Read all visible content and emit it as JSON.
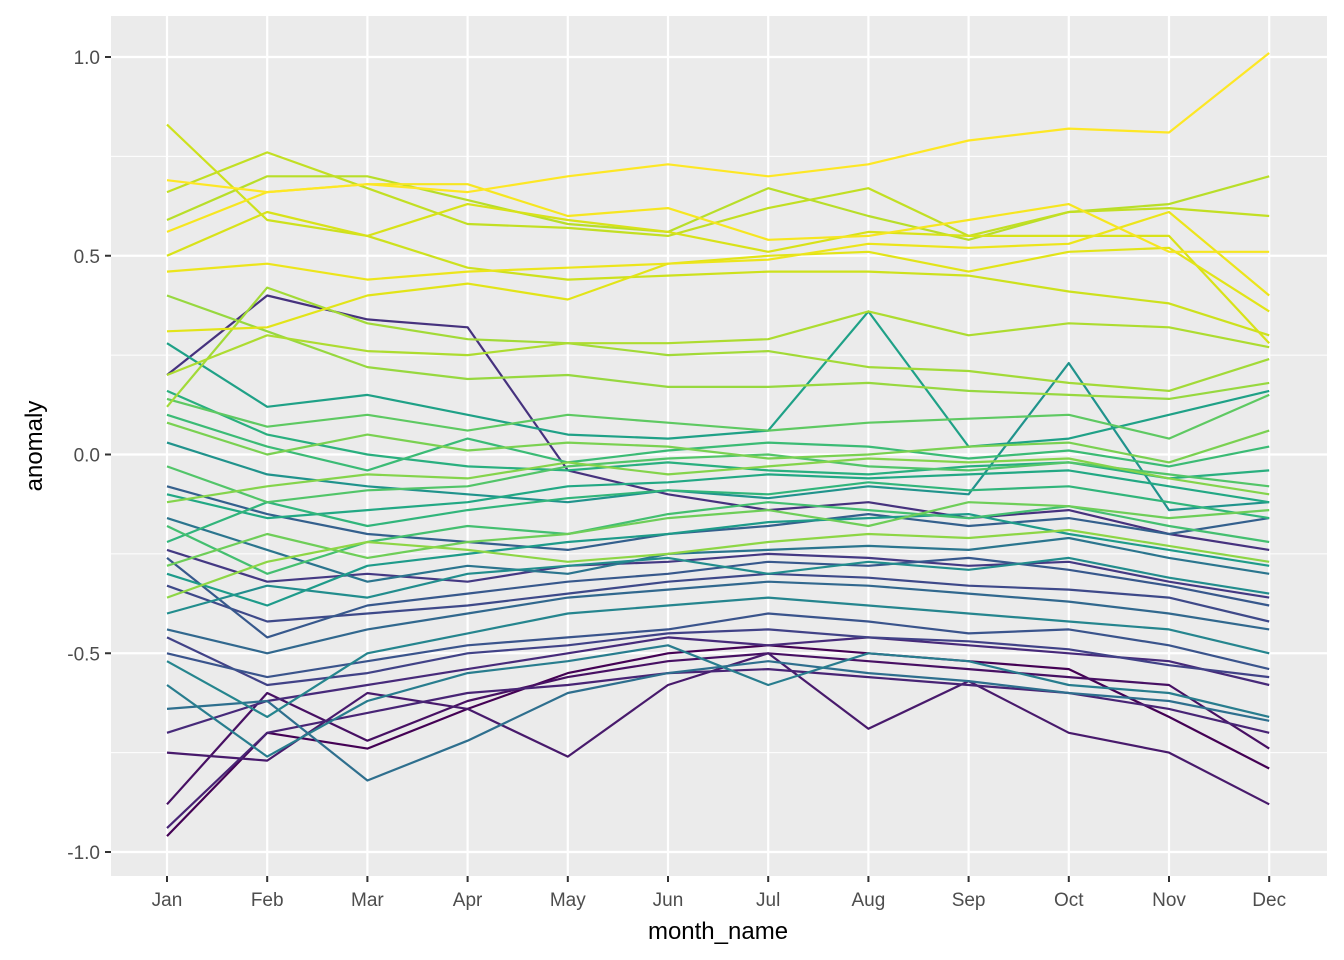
{
  "chart_data": {
    "type": "line",
    "title": "",
    "xlabel": "month_name",
    "ylabel": "anomaly",
    "categories": [
      "Jan",
      "Feb",
      "Mar",
      "Apr",
      "May",
      "Jun",
      "Jul",
      "Aug",
      "Sep",
      "Oct",
      "Nov",
      "Dec"
    ],
    "ylim": [
      -1.05,
      1.1
    ],
    "yticks": [
      -1.0,
      -0.5,
      0.0,
      0.5,
      1.0
    ],
    "ytick_labels": [
      "-1.0",
      "-0.5",
      "0.0",
      "0.5",
      "1.0"
    ],
    "grid": true,
    "legend": "none",
    "color_scale": "viridis",
    "panel_color": "#ebebeb",
    "grid_color": "#ffffff",
    "series": [
      {
        "color": "#fde725",
        "values": [
          0.69,
          0.66,
          0.68,
          0.66,
          0.7,
          0.73,
          0.7,
          0.73,
          0.79,
          0.82,
          0.81,
          1.01
        ]
      },
      {
        "color": "#f6e620",
        "values": [
          0.56,
          0.66,
          0.68,
          0.68,
          0.6,
          0.62,
          0.54,
          0.55,
          0.59,
          0.63,
          0.51,
          0.51
        ]
      },
      {
        "color": "#ece51b",
        "values": [
          0.46,
          0.48,
          0.44,
          0.46,
          0.47,
          0.48,
          0.49,
          0.53,
          0.52,
          0.53,
          0.61,
          0.4
        ]
      },
      {
        "color": "#e2e418",
        "values": [
          0.31,
          0.32,
          0.4,
          0.43,
          0.39,
          0.48,
          0.5,
          0.51,
          0.46,
          0.51,
          0.52,
          0.36
        ]
      },
      {
        "color": "#d8e219",
        "values": [
          0.5,
          0.61,
          0.55,
          0.63,
          0.59,
          0.56,
          0.51,
          0.56,
          0.55,
          0.55,
          0.55,
          0.28
        ]
      },
      {
        "color": "#cde11d",
        "values": [
          0.83,
          0.59,
          0.55,
          0.47,
          0.44,
          0.45,
          0.46,
          0.46,
          0.45,
          0.41,
          0.38,
          0.3
        ]
      },
      {
        "color": "#c2df23",
        "values": [
          0.66,
          0.76,
          0.67,
          0.58,
          0.57,
          0.55,
          0.62,
          0.67,
          0.55,
          0.61,
          0.62,
          0.6
        ]
      },
      {
        "color": "#b8de29",
        "values": [
          0.59,
          0.7,
          0.7,
          0.64,
          0.58,
          0.56,
          0.67,
          0.6,
          0.54,
          0.61,
          0.63,
          0.7
        ]
      },
      {
        "color": "#addc30",
        "values": [
          0.2,
          0.3,
          0.26,
          0.25,
          0.28,
          0.28,
          0.29,
          0.36,
          0.3,
          0.33,
          0.32,
          0.27
        ]
      },
      {
        "color": "#a2da37",
        "values": [
          0.12,
          0.42,
          0.33,
          0.29,
          0.28,
          0.25,
          0.26,
          0.22,
          0.21,
          0.18,
          0.16,
          0.24
        ]
      },
      {
        "color": "#97d83f",
        "values": [
          0.4,
          0.31,
          0.22,
          0.19,
          0.2,
          0.17,
          0.17,
          0.18,
          0.16,
          0.15,
          0.14,
          0.18
        ]
      },
      {
        "color": "#8dd645",
        "values": [
          -0.36,
          -0.27,
          -0.22,
          -0.24,
          -0.27,
          -0.25,
          -0.22,
          -0.2,
          -0.21,
          -0.19,
          -0.23,
          -0.27
        ]
      },
      {
        "color": "#84d44b",
        "values": [
          -0.12,
          -0.08,
          -0.05,
          -0.06,
          -0.02,
          -0.05,
          -0.03,
          -0.01,
          -0.02,
          -0.01,
          -0.06,
          -0.1
        ]
      },
      {
        "color": "#7ad151",
        "values": [
          0.08,
          0.0,
          0.05,
          0.01,
          0.03,
          0.02,
          -0.01,
          0.0,
          0.02,
          0.03,
          -0.02,
          0.06
        ]
      },
      {
        "color": "#6ece58",
        "values": [
          -0.28,
          -0.2,
          -0.26,
          -0.22,
          -0.2,
          -0.16,
          -0.14,
          -0.18,
          -0.12,
          -0.13,
          -0.16,
          -0.14
        ]
      },
      {
        "color": "#5ec962",
        "values": [
          0.14,
          0.07,
          0.1,
          0.06,
          0.1,
          0.08,
          0.06,
          0.08,
          0.09,
          0.1,
          0.04,
          0.15
        ]
      },
      {
        "color": "#52c569",
        "values": [
          -0.03,
          -0.12,
          -0.09,
          -0.08,
          -0.03,
          -0.01,
          0.0,
          -0.03,
          -0.04,
          -0.02,
          -0.05,
          -0.08
        ]
      },
      {
        "color": "#44bf70",
        "values": [
          -0.18,
          -0.3,
          -0.22,
          -0.18,
          -0.2,
          -0.15,
          -0.12,
          -0.14,
          -0.16,
          -0.13,
          -0.18,
          -0.22
        ]
      },
      {
        "color": "#3bbb75",
        "values": [
          0.1,
          0.02,
          -0.04,
          0.04,
          -0.02,
          0.01,
          0.03,
          0.02,
          -0.01,
          0.01,
          -0.03,
          0.02
        ]
      },
      {
        "color": "#31b57b",
        "values": [
          -0.22,
          -0.12,
          -0.18,
          -0.14,
          -0.11,
          -0.09,
          -0.1,
          -0.07,
          -0.09,
          -0.08,
          -0.12,
          -0.16
        ]
      },
      {
        "color": "#29af7f",
        "values": [
          0.16,
          0.05,
          0.0,
          -0.03,
          -0.04,
          -0.02,
          -0.04,
          -0.05,
          -0.03,
          -0.02,
          -0.06,
          -0.04
        ]
      },
      {
        "color": "#22a884",
        "values": [
          -0.1,
          -0.16,
          -0.14,
          -0.12,
          -0.08,
          -0.07,
          -0.05,
          -0.06,
          -0.05,
          -0.04,
          -0.08,
          -0.12
        ]
      },
      {
        "color": "#1fa187",
        "values": [
          0.28,
          0.12,
          0.15,
          0.1,
          0.05,
          0.04,
          0.06,
          0.36,
          0.02,
          0.04,
          0.1,
          0.16
        ]
      },
      {
        "color": "#1e9b8a",
        "values": [
          -0.3,
          -0.38,
          -0.28,
          -0.25,
          -0.22,
          -0.2,
          -0.17,
          -0.16,
          -0.15,
          -0.2,
          -0.24,
          -0.28
        ]
      },
      {
        "color": "#20938c",
        "values": [
          0.03,
          -0.05,
          -0.08,
          -0.1,
          -0.12,
          -0.09,
          -0.11,
          -0.08,
          -0.1,
          0.23,
          -0.14,
          -0.12
        ]
      },
      {
        "color": "#228d8d",
        "values": [
          -0.4,
          -0.33,
          -0.36,
          -0.3,
          -0.28,
          -0.26,
          -0.3,
          -0.27,
          -0.29,
          -0.26,
          -0.31,
          -0.35
        ]
      },
      {
        "color": "#25858e",
        "values": [
          -0.52,
          -0.66,
          -0.5,
          -0.45,
          -0.4,
          -0.38,
          -0.36,
          -0.38,
          -0.4,
          -0.42,
          -0.44,
          -0.5
        ]
      },
      {
        "color": "#287d8e",
        "values": [
          -0.58,
          -0.76,
          -0.62,
          -0.55,
          -0.52,
          -0.48,
          -0.58,
          -0.5,
          -0.52,
          -0.58,
          -0.6,
          -0.66
        ]
      },
      {
        "color": "#2b758e",
        "values": [
          -0.16,
          -0.24,
          -0.32,
          -0.28,
          -0.3,
          -0.25,
          -0.24,
          -0.23,
          -0.24,
          -0.21,
          -0.26,
          -0.3
        ]
      },
      {
        "color": "#2e6f8e",
        "values": [
          -0.64,
          -0.62,
          -0.82,
          -0.72,
          -0.6,
          -0.55,
          -0.52,
          -0.55,
          -0.57,
          -0.6,
          -0.62,
          -0.67
        ]
      },
      {
        "color": "#31688e",
        "values": [
          -0.44,
          -0.5,
          -0.44,
          -0.4,
          -0.36,
          -0.34,
          -0.32,
          -0.33,
          -0.35,
          -0.37,
          -0.4,
          -0.44
        ]
      },
      {
        "color": "#34608d",
        "values": [
          -0.08,
          -0.15,
          -0.2,
          -0.22,
          -0.24,
          -0.2,
          -0.18,
          -0.15,
          -0.18,
          -0.16,
          -0.2,
          -0.16
        ]
      },
      {
        "color": "#37588c",
        "values": [
          -0.26,
          -0.46,
          -0.38,
          -0.35,
          -0.32,
          -0.3,
          -0.27,
          -0.28,
          -0.26,
          -0.29,
          -0.33,
          -0.38
        ]
      },
      {
        "color": "#3a548c",
        "values": [
          -0.5,
          -0.56,
          -0.52,
          -0.48,
          -0.46,
          -0.44,
          -0.4,
          -0.42,
          -0.45,
          -0.44,
          -0.48,
          -0.54
        ]
      },
      {
        "color": "#3e4989",
        "values": [
          -0.33,
          -0.42,
          -0.4,
          -0.38,
          -0.35,
          -0.32,
          -0.3,
          -0.31,
          -0.33,
          -0.34,
          -0.36,
          -0.42
        ]
      },
      {
        "color": "#414287",
        "values": [
          -0.46,
          -0.58,
          -0.55,
          -0.5,
          -0.48,
          -0.45,
          -0.44,
          -0.46,
          -0.47,
          -0.49,
          -0.53,
          -0.56
        ]
      },
      {
        "color": "#443983",
        "values": [
          -0.24,
          -0.32,
          -0.3,
          -0.32,
          -0.28,
          -0.27,
          -0.25,
          -0.26,
          -0.28,
          -0.27,
          -0.32,
          -0.36
        ]
      },
      {
        "color": "#46327e",
        "values": [
          0.2,
          0.4,
          0.34,
          0.32,
          -0.04,
          -0.1,
          -0.14,
          -0.12,
          -0.16,
          -0.14,
          -0.2,
          -0.24
        ]
      },
      {
        "color": "#472a7a",
        "values": [
          -0.7,
          -0.62,
          -0.58,
          -0.54,
          -0.5,
          -0.46,
          -0.48,
          -0.46,
          -0.48,
          -0.5,
          -0.52,
          -0.58
        ]
      },
      {
        "color": "#482475",
        "values": [
          -0.94,
          -0.7,
          -0.65,
          -0.6,
          -0.58,
          -0.55,
          -0.54,
          -0.56,
          -0.58,
          -0.6,
          -0.64,
          -0.7
        ]
      },
      {
        "color": "#481a6c",
        "values": [
          -0.75,
          -0.77,
          -0.6,
          -0.64,
          -0.76,
          -0.58,
          -0.5,
          -0.69,
          -0.57,
          -0.7,
          -0.75,
          -0.88
        ]
      },
      {
        "color": "#471063",
        "values": [
          -0.88,
          -0.6,
          -0.72,
          -0.62,
          -0.56,
          -0.52,
          -0.5,
          -0.52,
          -0.54,
          -0.56,
          -0.58,
          -0.74
        ]
      },
      {
        "color": "#440154",
        "values": [
          -0.96,
          -0.7,
          -0.74,
          -0.64,
          -0.55,
          -0.5,
          -0.48,
          -0.5,
          -0.52,
          -0.54,
          -0.66,
          -0.79
        ]
      }
    ]
  }
}
